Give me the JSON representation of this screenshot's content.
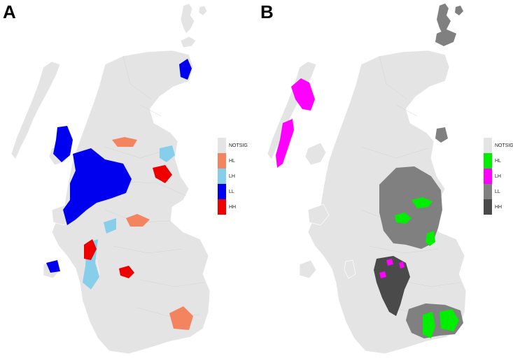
{
  "panels": [
    {
      "label": "A",
      "legend": [
        {
          "key": "NOTSIG",
          "color": "#e4e4e4"
        },
        {
          "key": "HL",
          "color": "#f4845f"
        },
        {
          "key": "LH",
          "color": "#87ceeb"
        },
        {
          "key": "LL",
          "color": "#0000ee"
        },
        {
          "key": "HH",
          "color": "#ee0000"
        }
      ]
    },
    {
      "label": "B",
      "legend": [
        {
          "key": "NOTSIG",
          "color": "#e4e4e4"
        },
        {
          "key": "HL",
          "color": "#00ee00"
        },
        {
          "key": "LH",
          "color": "#ff00ff"
        },
        {
          "key": "LL",
          "color": "#808080"
        },
        {
          "key": "HH",
          "color": "#4a4a4a"
        }
      ]
    }
  ],
  "colors": {
    "background": "#ffffff",
    "land": "#e4e4e4",
    "boundary": "#ffffff"
  }
}
